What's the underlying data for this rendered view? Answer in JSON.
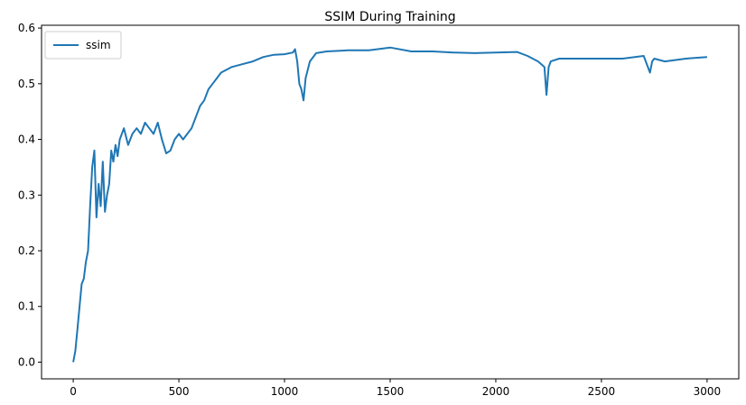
{
  "chart_data": {
    "type": "line",
    "title": "SSIM During Training",
    "xlabel": "",
    "ylabel": "",
    "xlim": [
      -150,
      3150
    ],
    "ylim": [
      -0.03,
      0.605
    ],
    "x_ticks": [
      0,
      500,
      1000,
      1500,
      2000,
      2500,
      3000
    ],
    "x_tick_labels": [
      "0",
      "500",
      "1000",
      "1500",
      "2000",
      "2500",
      "3000"
    ],
    "y_ticks": [
      0.0,
      0.1,
      0.2,
      0.3,
      0.4,
      0.5,
      0.6
    ],
    "y_tick_labels": [
      "0.0",
      "0.1",
      "0.2",
      "0.3",
      "0.4",
      "0.5",
      "0.6"
    ],
    "grid": false,
    "legend": {
      "position": "upper-left",
      "entries": [
        "ssim"
      ]
    },
    "series": [
      {
        "name": "ssim",
        "color": "#1f77b4",
        "x": [
          0,
          10,
          20,
          30,
          40,
          50,
          60,
          70,
          80,
          90,
          100,
          110,
          120,
          130,
          140,
          150,
          160,
          170,
          180,
          190,
          200,
          210,
          220,
          240,
          260,
          280,
          300,
          320,
          340,
          360,
          380,
          400,
          420,
          440,
          460,
          480,
          500,
          520,
          540,
          560,
          580,
          600,
          620,
          640,
          660,
          680,
          700,
          750,
          800,
          850,
          900,
          950,
          1000,
          1040,
          1050,
          1060,
          1070,
          1080,
          1090,
          1100,
          1120,
          1150,
          1200,
          1300,
          1400,
          1500,
          1600,
          1700,
          1800,
          1900,
          2000,
          2100,
          2150,
          2200,
          2230,
          2240,
          2250,
          2260,
          2300,
          2400,
          2500,
          2600,
          2700,
          2730,
          2740,
          2750,
          2800,
          2900,
          3000
        ],
        "y": [
          0.0,
          0.02,
          0.06,
          0.1,
          0.14,
          0.15,
          0.18,
          0.2,
          0.28,
          0.35,
          0.38,
          0.26,
          0.32,
          0.28,
          0.36,
          0.27,
          0.3,
          0.32,
          0.38,
          0.36,
          0.39,
          0.37,
          0.4,
          0.42,
          0.39,
          0.41,
          0.42,
          0.41,
          0.43,
          0.42,
          0.41,
          0.43,
          0.4,
          0.375,
          0.38,
          0.4,
          0.41,
          0.4,
          0.41,
          0.42,
          0.44,
          0.46,
          0.47,
          0.49,
          0.5,
          0.51,
          0.52,
          0.53,
          0.535,
          0.54,
          0.548,
          0.552,
          0.553,
          0.556,
          0.562,
          0.54,
          0.5,
          0.49,
          0.47,
          0.51,
          0.54,
          0.555,
          0.558,
          0.56,
          0.56,
          0.565,
          0.558,
          0.558,
          0.556,
          0.555,
          0.556,
          0.557,
          0.55,
          0.54,
          0.53,
          0.48,
          0.53,
          0.54,
          0.545,
          0.545,
          0.545,
          0.545,
          0.55,
          0.52,
          0.54,
          0.545,
          0.54,
          0.545,
          0.548
        ]
      }
    ]
  }
}
